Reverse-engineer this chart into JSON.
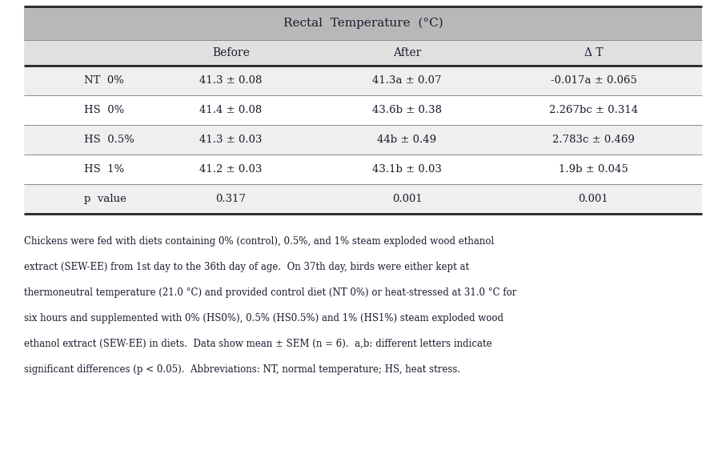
{
  "title": "Rectal  Temperature  (°C)",
  "col_headers": [
    "",
    "Before",
    "After",
    "Δ T"
  ],
  "rows": [
    [
      "NT  0%",
      "41.3 ± 0.08",
      "41.3a ± 0.07",
      "-0.017a ± 0.065"
    ],
    [
      "HS  0%",
      "41.4 ± 0.08",
      "43.6b ± 0.38",
      "2.267bc ± 0.314"
    ],
    [
      "HS  0.5%",
      "41.3 ± 0.03",
      "44b ± 0.49",
      "2.783c ± 0.469"
    ],
    [
      "HS  1%",
      "41.2 ± 0.03",
      "43.1b ± 0.03",
      "1.9b ± 0.045"
    ],
    [
      "p  value",
      "0.317",
      "0.001",
      "0.001"
    ]
  ],
  "footnote_lines": [
    "Chickens were fed with diets containing 0% (control), 0.5%, and 1% steam exploded wood ethanol",
    "extract (SEW-EE) from 1st day to the 36th day of age.  On 37th day, birds were either kept at",
    "thermoneutral temperature (21.0 °C) and provided control diet (NT 0%) or heat-stressed at 31.0 °C for",
    "six hours and supplemented with 0% (HS0%), 0.5% (HS0.5%) and 1% (HS1%) steam exploded wood",
    "ethanol extract (SEW-EE) in diets.  Data show mean ± SEM (n = 6).  a,b: different letters indicate",
    "significant differences (p < 0.05).  Abbreviations: NT, normal temperature; HS, heat stress."
  ],
  "header_bg": "#b8b8b8",
  "subheader_bg": "#e0e0e0",
  "row_bg_alt": "#efefef",
  "row_bg_plain": "#ffffff",
  "text_color": "#1a1a2e",
  "border_color_thick": "#222222",
  "border_color_thin": "#888888"
}
